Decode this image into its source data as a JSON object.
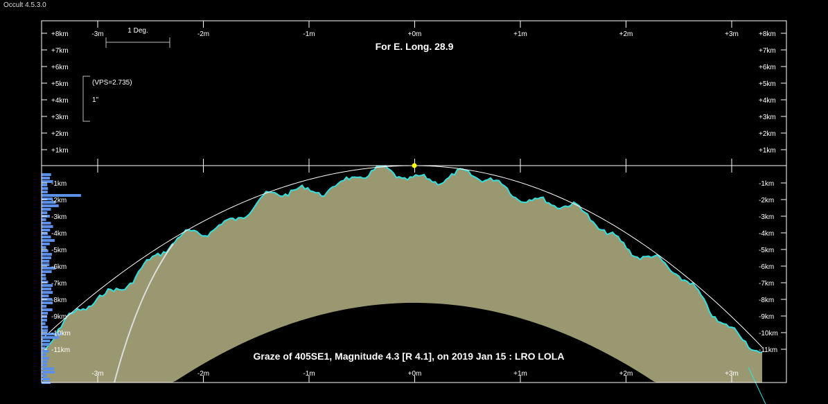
{
  "window_title": "Occult 4.5.3.0",
  "chart_data": {
    "type": "area",
    "title": "For E. Long. 28.9",
    "caption": "Graze of  405SE1,  Magnitude 4.3 [R 4.1],  on 2019 Jan 15  :  LRO LOLA",
    "scale_label": "1 Deg.",
    "vps_label": "(VPS=2.735)",
    "vps_unit": "1\"",
    "x_ticks": [
      "-3m",
      "-2m",
      "-1m",
      "+0m",
      "+1m",
      "+2m",
      "+3m"
    ],
    "y_ticks_upper": [
      "+8km",
      "+7km",
      "+6km",
      "+5km",
      "+4km",
      "+3km",
      "+2km",
      "+1km"
    ],
    "y_ticks_lower": [
      "-1km",
      "-2km",
      "-3km",
      "-4km",
      "-5km",
      "-6km",
      "-7km",
      "-8km",
      "-9km",
      "-10km",
      "-11km"
    ],
    "xlim": [
      -3.5,
      3.5
    ],
    "ylim": [
      -13,
      9
    ],
    "colors": {
      "limb": "#33e0e0",
      "fill": "#9a9870",
      "histogram": "#5b8fe8",
      "star": "#ffff00",
      "frame": "#ffffff"
    }
  }
}
